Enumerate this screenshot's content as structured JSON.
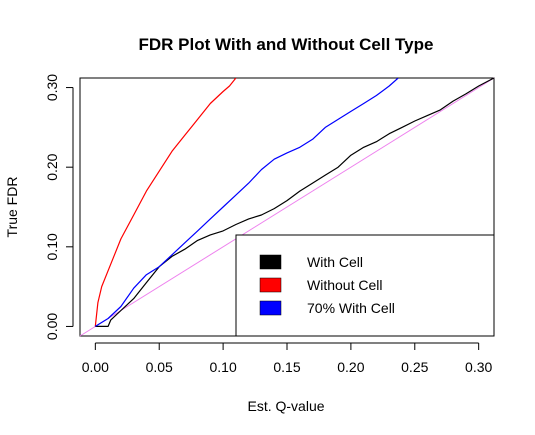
{
  "chart_data": {
    "type": "line",
    "title": "FDR Plot With and Without Cell Type",
    "xlabel": "Est. Q-value",
    "ylabel": "True FDR",
    "xlim": [
      -0.012,
      0.312
    ],
    "ylim": [
      -0.012,
      0.312
    ],
    "x_ticks": [
      "0.00",
      "0.05",
      "0.10",
      "0.15",
      "0.20",
      "0.25",
      "0.30"
    ],
    "y_ticks": [
      "0.00",
      "0.10",
      "0.20",
      "0.30"
    ],
    "grid": false,
    "legend_position": "bottom-right",
    "reference_line": {
      "color": "#ee82ee",
      "x": [
        -0.012,
        0.312
      ],
      "y": [
        -0.012,
        0.312
      ]
    },
    "series": [
      {
        "name": "With Cell",
        "color": "#000000",
        "x": [
          0.0,
          0.01,
          0.012,
          0.02,
          0.03,
          0.04,
          0.05,
          0.06,
          0.07,
          0.08,
          0.09,
          0.1,
          0.11,
          0.12,
          0.13,
          0.14,
          0.15,
          0.16,
          0.17,
          0.18,
          0.19,
          0.2,
          0.21,
          0.22,
          0.23,
          0.24,
          0.25,
          0.26,
          0.27,
          0.28,
          0.29,
          0.3,
          0.312
        ],
        "y": [
          0.0,
          0.0,
          0.008,
          0.02,
          0.035,
          0.055,
          0.075,
          0.088,
          0.097,
          0.108,
          0.115,
          0.12,
          0.128,
          0.135,
          0.14,
          0.148,
          0.158,
          0.17,
          0.18,
          0.19,
          0.2,
          0.215,
          0.225,
          0.232,
          0.242,
          0.25,
          0.258,
          0.265,
          0.272,
          0.283,
          0.292,
          0.302,
          0.312
        ]
      },
      {
        "name": "Without Cell",
        "color": "#ff0000",
        "x": [
          0.0,
          0.002,
          0.005,
          0.01,
          0.015,
          0.02,
          0.03,
          0.04,
          0.05,
          0.06,
          0.07,
          0.08,
          0.09,
          0.1,
          0.105,
          0.11
        ],
        "y": [
          0.0,
          0.03,
          0.05,
          0.07,
          0.09,
          0.11,
          0.14,
          0.17,
          0.195,
          0.22,
          0.24,
          0.26,
          0.28,
          0.295,
          0.302,
          0.312
        ]
      },
      {
        "name": "70% With Cell",
        "color": "#0000ff",
        "x": [
          0.0,
          0.01,
          0.02,
          0.03,
          0.04,
          0.05,
          0.06,
          0.07,
          0.08,
          0.09,
          0.1,
          0.11,
          0.12,
          0.13,
          0.14,
          0.15,
          0.16,
          0.17,
          0.18,
          0.19,
          0.2,
          0.21,
          0.22,
          0.23,
          0.237
        ],
        "y": [
          0.0,
          0.01,
          0.025,
          0.048,
          0.065,
          0.075,
          0.09,
          0.105,
          0.12,
          0.135,
          0.15,
          0.165,
          0.18,
          0.197,
          0.21,
          0.218,
          0.225,
          0.235,
          0.25,
          0.26,
          0.27,
          0.28,
          0.29,
          0.302,
          0.312
        ]
      }
    ]
  }
}
